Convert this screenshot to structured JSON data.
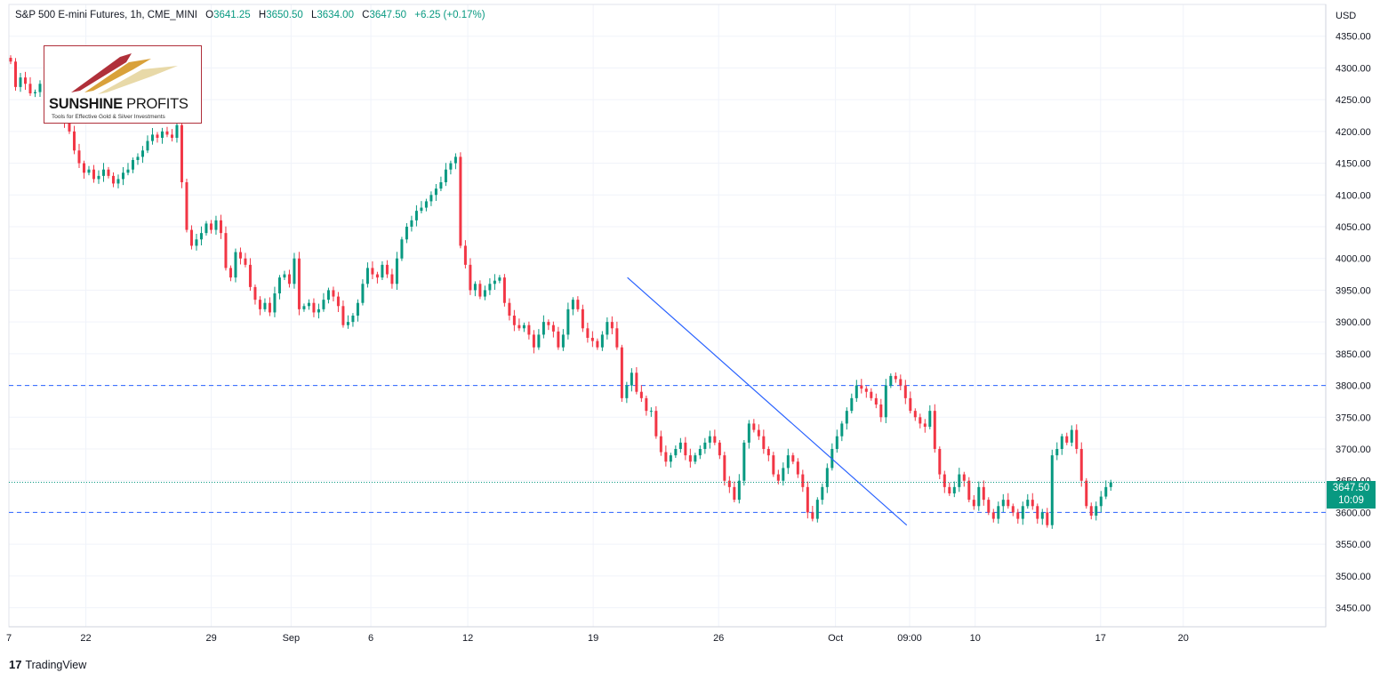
{
  "header": {
    "symbol": "S&P 500 E-mini Futures, 1h, CME_MINI",
    "open_label": "O",
    "open": "3641.25",
    "high_label": "H",
    "high": "3650.50",
    "low_label": "L",
    "low": "3634.00",
    "close_label": "C",
    "close": "3647.50",
    "change": "+6.25 (+0.17%)"
  },
  "logo": {
    "brand_bold": "SUNSHINE",
    "brand_rest": " PROFITS",
    "tagline": "Tools for Effective Gold & Silver Investments"
  },
  "footer": {
    "brand": "TradingView",
    "mark": "17"
  },
  "price_tag": {
    "price": "3647.50",
    "countdown": "10:09"
  },
  "colors": {
    "up": "#089981",
    "down": "#f23645",
    "trendline": "#2962ff",
    "level": "#2962ff",
    "tag": "#089981"
  },
  "chart_data": {
    "type": "candlestick",
    "title": "S&P 500 E-mini Futures, 1h, CME_MINI",
    "currency": "USD",
    "ylim": [
      3420,
      4400
    ],
    "y_ticks": [
      3450,
      3500,
      3550,
      3600,
      3650,
      3700,
      3750,
      3800,
      3850,
      3900,
      3950,
      4000,
      4050,
      4100,
      4150,
      4200,
      4250,
      4300,
      4350
    ],
    "x_ticks": [
      {
        "label": "7",
        "pos": 0
      },
      {
        "label": "22",
        "pos": 13.5
      },
      {
        "label": "29",
        "pos": 35.5
      },
      {
        "label": "Sep",
        "pos": 49.5
      },
      {
        "label": "6",
        "pos": 63.5
      },
      {
        "label": "12",
        "pos": 80.5
      },
      {
        "label": "19",
        "pos": 102.5
      },
      {
        "label": "26",
        "pos": 124.5
      },
      {
        "label": "Oct",
        "pos": 145
      },
      {
        "label": "09:00",
        "pos": 158
      },
      {
        "label": "10",
        "pos": 169.5
      },
      {
        "label": "17",
        "pos": 191.5
      },
      {
        "label": "20",
        "pos": 206
      }
    ],
    "x_range": [
      0,
      231
    ],
    "last_close": 3647.5,
    "horizontal_levels": [
      3800,
      3600
    ],
    "trendline": {
      "from": {
        "pos": 108.5,
        "price": 3970
      },
      "to": {
        "pos": 157.5,
        "price": 3580
      }
    },
    "closes": [
      4310,
      4270,
      4285,
      4275,
      4260,
      4262,
      4275,
      4270,
      4255,
      4240,
      4230,
      4215,
      4200,
      4170,
      4150,
      4135,
      4140,
      4125,
      4130,
      4140,
      4130,
      4118,
      4125,
      4135,
      4140,
      4155,
      4160,
      4170,
      4185,
      4195,
      4190,
      4200,
      4195,
      4190,
      4210,
      4120,
      4045,
      4020,
      4030,
      4040,
      4055,
      4045,
      4060,
      4040,
      3985,
      3970,
      4010,
      4000,
      3990,
      3955,
      3935,
      3920,
      3930,
      3915,
      3945,
      3970,
      3975,
      3960,
      4000,
      3920,
      3925,
      3930,
      3915,
      3920,
      3935,
      3950,
      3940,
      3925,
      3895,
      3900,
      3910,
      3930,
      3960,
      3985,
      3975,
      3970,
      3990,
      3975,
      3960,
      4000,
      4030,
      4050,
      4060,
      4075,
      4080,
      4090,
      4100,
      4110,
      4120,
      4140,
      4150,
      4160,
      4020,
      3990,
      3950,
      3960,
      3940,
      3950,
      3960,
      3965,
      3970,
      3930,
      3910,
      3895,
      3890,
      3895,
      3880,
      3860,
      3880,
      3900,
      3895,
      3885,
      3860,
      3880,
      3920,
      3935,
      3920,
      3890,
      3875,
      3870,
      3860,
      3880,
      3900,
      3890,
      3860,
      3780,
      3800,
      3820,
      3790,
      3780,
      3760,
      3760,
      3720,
      3695,
      3680,
      3690,
      3700,
      3710,
      3690,
      3680,
      3690,
      3700,
      3710,
      3720,
      3710,
      3690,
      3650,
      3640,
      3620,
      3650,
      3710,
      3740,
      3730,
      3720,
      3700,
      3690,
      3660,
      3650,
      3670,
      3690,
      3680,
      3660,
      3640,
      3600,
      3590,
      3620,
      3640,
      3670,
      3700,
      3720,
      3740,
      3760,
      3780,
      3800,
      3795,
      3790,
      3780,
      3770,
      3750,
      3800,
      3815,
      3810,
      3800,
      3780,
      3760,
      3750,
      3740,
      3735,
      3760,
      3700,
      3660,
      3640,
      3630,
      3640,
      3660,
      3650,
      3620,
      3610,
      3640,
      3620,
      3600,
      3590,
      3610,
      3620,
      3610,
      3600,
      3590,
      3610,
      3620,
      3610,
      3590,
      3600,
      3580,
      3690,
      3700,
      3720,
      3710,
      3730,
      3700,
      3650,
      3610,
      3595,
      3610,
      3625,
      3640,
      3647.5
    ]
  }
}
